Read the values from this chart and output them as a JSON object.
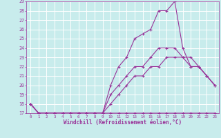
{
  "xlabel": "Windchill (Refroidissement éolien,°C)",
  "xlim": [
    -0.5,
    23.5
  ],
  "ylim": [
    17,
    29
  ],
  "yticks": [
    17,
    18,
    19,
    20,
    21,
    22,
    23,
    24,
    25,
    26,
    27,
    28,
    29
  ],
  "xticks": [
    0,
    1,
    2,
    3,
    4,
    5,
    6,
    7,
    8,
    9,
    10,
    11,
    12,
    13,
    14,
    15,
    16,
    17,
    18,
    19,
    20,
    21,
    22,
    23
  ],
  "bg_color": "#c8ecec",
  "grid_color": "#ffffff",
  "line_color": "#993399",
  "lines": [
    {
      "x": [
        0,
        1,
        2,
        3,
        4,
        5,
        6,
        7,
        8,
        9,
        10,
        11,
        12,
        13,
        14,
        15,
        16,
        17,
        18,
        19,
        20,
        21,
        22,
        23
      ],
      "y": [
        18,
        17,
        17,
        17,
        17,
        17,
        17,
        17,
        17,
        17,
        17,
        17,
        17,
        17,
        17,
        17,
        17,
        17,
        17,
        17,
        17,
        17,
        17,
        17
      ]
    },
    {
      "x": [
        0,
        1,
        2,
        3,
        4,
        5,
        6,
        7,
        8,
        9,
        10,
        11,
        12,
        13,
        14,
        15,
        16,
        17,
        18,
        19,
        20,
        21,
        22,
        23
      ],
      "y": [
        18,
        17,
        17,
        17,
        17,
        17,
        17,
        17,
        17,
        17,
        18,
        19,
        20,
        21,
        21,
        22,
        22,
        23,
        23,
        23,
        22,
        22,
        21,
        20
      ]
    },
    {
      "x": [
        0,
        1,
        2,
        3,
        4,
        5,
        6,
        7,
        8,
        9,
        10,
        11,
        12,
        13,
        14,
        15,
        16,
        17,
        18,
        19,
        20,
        21,
        22,
        23
      ],
      "y": [
        18,
        17,
        17,
        17,
        17,
        17,
        17,
        17,
        17,
        17,
        19,
        20,
        21,
        22,
        22,
        23,
        24,
        24,
        24,
        23,
        23,
        22,
        21,
        20
      ]
    },
    {
      "x": [
        0,
        1,
        2,
        3,
        4,
        5,
        6,
        7,
        8,
        9,
        10,
        11,
        12,
        13,
        14,
        15,
        16,
        17,
        18,
        19,
        20,
        21,
        22,
        23
      ],
      "y": [
        18,
        17,
        17,
        17,
        17,
        17,
        17,
        17,
        17,
        17,
        20,
        22,
        23,
        25,
        25.5,
        26,
        28,
        28,
        29,
        24,
        22,
        22,
        21,
        20
      ]
    }
  ]
}
